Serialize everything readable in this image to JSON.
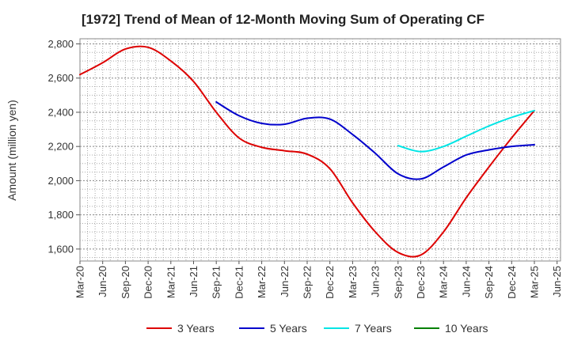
{
  "chart_data": {
    "type": "line",
    "title": "[1972]  Trend of Mean of 12-Month Moving Sum of Operating CF",
    "xlabel": "",
    "ylabel": "Amount (million yen)",
    "ylim": [
      1530,
      2830
    ],
    "yticks": [
      1600,
      1800,
      2000,
      2200,
      2400,
      2600,
      2800
    ],
    "ytick_labels": [
      "1,600",
      "1,800",
      "2,000",
      "2,200",
      "2,400",
      "2,600",
      "2,800"
    ],
    "categories": [
      "Mar-20",
      "Jun-20",
      "Sep-20",
      "Dec-20",
      "Mar-21",
      "Jun-21",
      "Sep-21",
      "Dec-21",
      "Mar-22",
      "Jun-22",
      "Sep-22",
      "Dec-22",
      "Mar-23",
      "Jun-23",
      "Sep-23",
      "Dec-23",
      "Mar-24",
      "Jun-24",
      "Sep-24",
      "Dec-24",
      "Mar-25",
      "Jun-25"
    ],
    "grid": true,
    "legend_position": "bottom",
    "series": [
      {
        "name": "3 Years",
        "color": "#dd0000",
        "values": [
          2620,
          2690,
          2770,
          2780,
          2700,
          2580,
          2400,
          2250,
          2195,
          2175,
          2155,
          2070,
          1870,
          1700,
          1580,
          1565,
          1700,
          1900,
          2080,
          2250,
          2410,
          null
        ]
      },
      {
        "name": "5 Years",
        "color": "#0000cc",
        "values": [
          null,
          null,
          null,
          null,
          null,
          null,
          2460,
          2380,
          2335,
          2330,
          2365,
          2360,
          2270,
          2160,
          2040,
          2010,
          2080,
          2150,
          2180,
          2200,
          2210,
          null
        ]
      },
      {
        "name": "7 Years",
        "color": "#00e5e5",
        "values": [
          null,
          null,
          null,
          null,
          null,
          null,
          null,
          null,
          null,
          null,
          null,
          null,
          null,
          null,
          2205,
          2170,
          2200,
          2260,
          2320,
          2370,
          2410,
          null
        ]
      },
      {
        "name": "10 Years",
        "color": "#008000",
        "values": [
          null,
          null,
          null,
          null,
          null,
          null,
          null,
          null,
          null,
          null,
          null,
          null,
          null,
          null,
          null,
          null,
          null,
          null,
          null,
          null,
          null,
          null
        ]
      }
    ]
  }
}
